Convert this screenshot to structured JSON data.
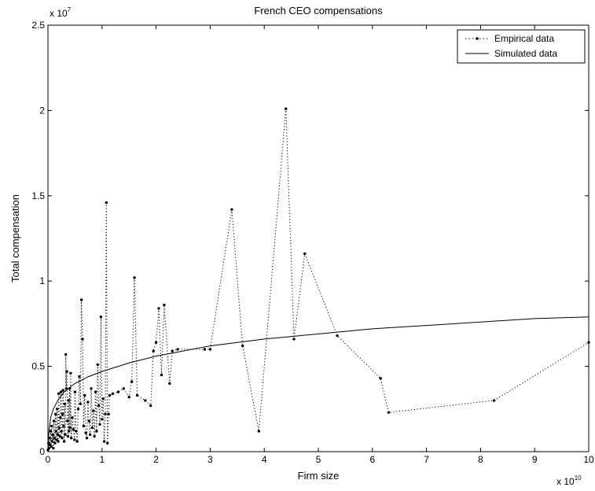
{
  "chart_data": {
    "type": "line",
    "title": "French CEO compensations",
    "xlabel": "Firm size",
    "ylabel": "Total compensation",
    "x_multiplier": "x 10",
    "x_exponent": "10",
    "y_multiplier": "x 10",
    "y_exponent": "7",
    "xlim": [
      0,
      10
    ],
    "ylim": [
      0,
      2.5
    ],
    "x_ticks": [
      0,
      1,
      2,
      3,
      4,
      5,
      6,
      7,
      8,
      9,
      10
    ],
    "y_ticks": [
      0,
      0.5,
      1,
      1.5,
      2,
      2.5
    ],
    "x_tick_labels": [
      "0",
      "1",
      "2",
      "3",
      "4",
      "5",
      "6",
      "7",
      "8",
      "9",
      "10"
    ],
    "y_tick_labels": [
      "0",
      "0.5",
      "1",
      "1.5",
      "2",
      "2.5"
    ],
    "grid": false,
    "legend_position": "top-right",
    "series": [
      {
        "name": "Empirical data",
        "style": "dotted-with-markers",
        "color": "#000000",
        "points": [
          [
            0.0,
            0.01
          ],
          [
            0.01,
            0.05
          ],
          [
            0.02,
            0.02
          ],
          [
            0.03,
            0.08
          ],
          [
            0.04,
            0.04
          ],
          [
            0.05,
            0.12
          ],
          [
            0.06,
            0.03
          ],
          [
            0.07,
            0.15
          ],
          [
            0.08,
            0.06
          ],
          [
            0.09,
            0.1
          ],
          [
            0.1,
            0.02
          ],
          [
            0.11,
            0.18
          ],
          [
            0.12,
            0.08
          ],
          [
            0.13,
            0.05
          ],
          [
            0.14,
            0.22
          ],
          [
            0.15,
            0.12
          ],
          [
            0.16,
            0.07
          ],
          [
            0.17,
            0.25
          ],
          [
            0.18,
            0.1
          ],
          [
            0.19,
            0.06
          ],
          [
            0.2,
            0.34
          ],
          [
            0.21,
            0.14
          ],
          [
            0.22,
            0.09
          ],
          [
            0.23,
            0.2
          ],
          [
            0.24,
            0.35
          ],
          [
            0.25,
            0.12
          ],
          [
            0.26,
            0.08
          ],
          [
            0.27,
            0.22
          ],
          [
            0.28,
            0.36
          ],
          [
            0.29,
            0.15
          ],
          [
            0.3,
            0.06
          ],
          [
            0.31,
            0.28
          ],
          [
            0.32,
            0.1
          ],
          [
            0.33,
            0.57
          ],
          [
            0.34,
            0.37
          ],
          [
            0.35,
            0.47
          ],
          [
            0.36,
            0.18
          ],
          [
            0.37,
            0.09
          ],
          [
            0.38,
            0.3
          ],
          [
            0.39,
            0.12
          ],
          [
            0.4,
            0.37
          ],
          [
            0.41,
            0.14
          ],
          [
            0.42,
            0.46
          ],
          [
            0.43,
            0.08
          ],
          [
            0.45,
            0.2
          ],
          [
            0.47,
            0.13
          ],
          [
            0.49,
            0.07
          ],
          [
            0.5,
            0.35
          ],
          [
            0.52,
            0.12
          ],
          [
            0.54,
            0.06
          ],
          [
            0.56,
            0.25
          ],
          [
            0.58,
            0.44
          ],
          [
            0.6,
            0.28
          ],
          [
            0.62,
            0.89
          ],
          [
            0.64,
            0.66
          ],
          [
            0.66,
            0.15
          ],
          [
            0.68,
            0.33
          ],
          [
            0.7,
            0.11
          ],
          [
            0.72,
            0.08
          ],
          [
            0.74,
            0.29
          ],
          [
            0.76,
            0.18
          ],
          [
            0.78,
            0.1
          ],
          [
            0.8,
            0.37
          ],
          [
            0.82,
            0.14
          ],
          [
            0.84,
            0.24
          ],
          [
            0.86,
            0.09
          ],
          [
            0.88,
            0.35
          ],
          [
            0.9,
            0.12
          ],
          [
            0.92,
            0.51
          ],
          [
            0.94,
            0.27
          ],
          [
            0.96,
            0.16
          ],
          [
            0.98,
            0.79
          ],
          [
            1.0,
            0.19
          ],
          [
            1.02,
            0.31
          ],
          [
            1.04,
            0.06
          ],
          [
            1.06,
            0.22
          ],
          [
            1.08,
            1.46
          ],
          [
            1.1,
            0.05
          ],
          [
            1.12,
            0.22
          ],
          [
            1.14,
            0.33
          ],
          [
            1.2,
            0.34
          ],
          [
            1.3,
            0.35
          ],
          [
            1.4,
            0.37
          ],
          [
            1.5,
            0.32
          ],
          [
            1.55,
            0.41
          ],
          [
            1.6,
            1.02
          ],
          [
            1.65,
            0.33
          ],
          [
            1.8,
            0.3
          ],
          [
            1.9,
            0.27
          ],
          [
            1.95,
            0.59
          ],
          [
            2.0,
            0.64
          ],
          [
            2.05,
            0.84
          ],
          [
            2.1,
            0.45
          ],
          [
            2.15,
            0.86
          ],
          [
            2.25,
            0.4
          ],
          [
            2.3,
            0.59
          ],
          [
            2.4,
            0.6
          ],
          [
            2.9,
            0.6
          ],
          [
            3.0,
            0.6
          ],
          [
            3.4,
            1.42
          ],
          [
            3.6,
            0.62
          ],
          [
            3.9,
            0.12
          ],
          [
            4.4,
            2.01
          ],
          [
            4.55,
            0.66
          ],
          [
            4.75,
            1.16
          ],
          [
            5.35,
            0.68
          ],
          [
            6.15,
            0.43
          ],
          [
            6.3,
            0.23
          ],
          [
            8.25,
            0.3
          ],
          [
            10.0,
            0.64
          ]
        ]
      },
      {
        "name": "Simulated data",
        "style": "solid",
        "color": "#000000",
        "points": [
          [
            0.0,
            0.0
          ],
          [
            0.01,
            0.08
          ],
          [
            0.02,
            0.12
          ],
          [
            0.05,
            0.2
          ],
          [
            0.1,
            0.25
          ],
          [
            0.2,
            0.31
          ],
          [
            0.3,
            0.35
          ],
          [
            0.5,
            0.4
          ],
          [
            0.75,
            0.44
          ],
          [
            1.0,
            0.47
          ],
          [
            1.5,
            0.52
          ],
          [
            2.0,
            0.56
          ],
          [
            3.0,
            0.62
          ],
          [
            4.0,
            0.66
          ],
          [
            5.0,
            0.69
          ],
          [
            6.0,
            0.72
          ],
          [
            7.0,
            0.74
          ],
          [
            8.0,
            0.76
          ],
          [
            9.0,
            0.78
          ],
          [
            10.0,
            0.79
          ]
        ]
      }
    ]
  }
}
